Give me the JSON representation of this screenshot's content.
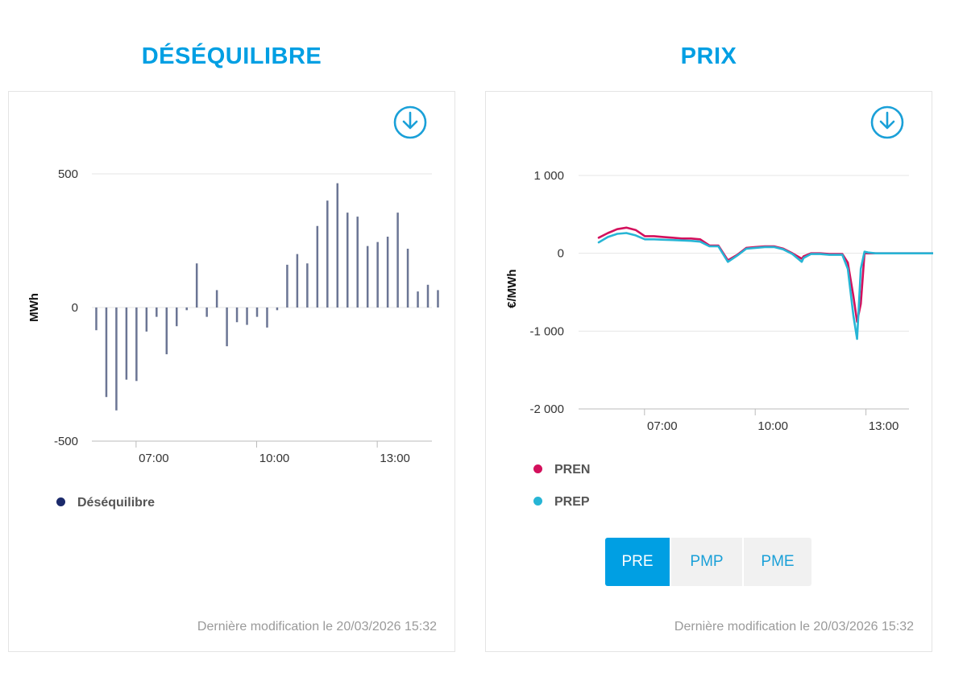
{
  "left_panel": {
    "title": "DÉSÉQUILIBRE",
    "footer": "Dernière modification le 20/03/2026 15:32",
    "download_icon": "download-circle-icon"
  },
  "right_panel": {
    "title": "PRIX",
    "footer": "Dernière modification le 20/03/2026 15:32",
    "download_icon": "download-circle-icon",
    "buttons": [
      "PRE",
      "PMP",
      "PME"
    ],
    "active_button": "PRE"
  },
  "chart_data": [
    {
      "type": "bar",
      "ylabel": "MWh",
      "ylim": [
        -500,
        500
      ],
      "yticks": [
        500,
        0,
        -500
      ],
      "ytick_labels": [
        "500",
        "0",
        "-500"
      ],
      "xticks": [
        "07:00",
        "10:00",
        "13:00"
      ],
      "grid": true,
      "legend_position": "bottom-left",
      "series": [
        {
          "name": "Déséquilibre",
          "color": "#1b2a6b",
          "bar_color": "#6b7594",
          "x": [
            "06:00",
            "06:15",
            "06:30",
            "06:45",
            "07:00",
            "07:15",
            "07:30",
            "07:45",
            "08:00",
            "08:15",
            "08:30",
            "08:45",
            "09:00",
            "09:15",
            "09:30",
            "09:45",
            "10:00",
            "10:15",
            "10:30",
            "10:45",
            "11:00",
            "11:15",
            "11:30",
            "11:45",
            "12:00",
            "12:15",
            "12:30",
            "12:45",
            "13:00",
            "13:15",
            "13:30",
            "13:45",
            "14:00",
            "14:15",
            "14:30",
            "14:45"
          ],
          "values": [
            -85,
            -335,
            -385,
            -270,
            -275,
            -90,
            -35,
            -175,
            -70,
            -10,
            165,
            -35,
            65,
            -145,
            -55,
            -65,
            -35,
            -75,
            -10,
            160,
            200,
            165,
            305,
            400,
            465,
            355,
            340,
            230,
            245,
            265,
            355,
            220,
            60,
            85,
            65,
            0
          ]
        }
      ]
    },
    {
      "type": "line",
      "ylabel": "€/MWh",
      "ylim": [
        -2000,
        1000
      ],
      "yticks": [
        1000,
        0,
        -1000,
        -2000
      ],
      "ytick_labels": [
        "1 000",
        "0",
        "-1 000",
        "-2 000"
      ],
      "xticks": [
        "07:00",
        "10:00",
        "13:00"
      ],
      "grid": true,
      "legend_position": "bottom-left",
      "series": [
        {
          "name": "PREN",
          "color": "#d3105c",
          "x": [
            6.0,
            6.25,
            6.5,
            6.75,
            7.0,
            7.25,
            7.5,
            7.75,
            8.0,
            8.25,
            8.5,
            8.75,
            9.0,
            9.24,
            9.5,
            9.75,
            10.0,
            10.25,
            10.5,
            10.75,
            11.0,
            11.25,
            11.5,
            11.55,
            11.75,
            12.0,
            12.25,
            12.5,
            12.6,
            12.75,
            12.9,
            13.0,
            13.1,
            13.2,
            13.3,
            13.5,
            13.75,
            14.0,
            14.25,
            14.5,
            14.75,
            15.0,
            15.25,
            15.4
          ],
          "values": [
            200,
            260,
            310,
            330,
            300,
            220,
            220,
            210,
            200,
            190,
            190,
            180,
            100,
            100,
            -90,
            -20,
            70,
            80,
            90,
            90,
            60,
            0,
            -70,
            -40,
            0,
            0,
            -10,
            -10,
            -10,
            -120,
            -550,
            -880,
            -650,
            0,
            0,
            0,
            0,
            0,
            0,
            0,
            0,
            0,
            0,
            0
          ]
        },
        {
          "name": "PREP",
          "color": "#27b5d5",
          "x": [
            6.0,
            6.25,
            6.5,
            6.75,
            7.0,
            7.25,
            7.5,
            7.75,
            8.0,
            8.25,
            8.5,
            8.75,
            9.0,
            9.24,
            9.5,
            9.75,
            10.0,
            10.25,
            10.5,
            10.75,
            11.0,
            11.25,
            11.5,
            11.55,
            11.75,
            12.0,
            12.25,
            12.5,
            12.6,
            12.75,
            12.9,
            13.0,
            13.1,
            13.2,
            13.3,
            13.5,
            13.75,
            14.0,
            14.25,
            14.5,
            14.75,
            15.0,
            15.25,
            15.4
          ],
          "values": [
            140,
            210,
            250,
            260,
            230,
            180,
            180,
            175,
            170,
            165,
            160,
            150,
            90,
            90,
            -110,
            -30,
            60,
            70,
            80,
            80,
            50,
            -10,
            -110,
            -60,
            -10,
            -10,
            -20,
            -20,
            -20,
            -200,
            -800,
            -1100,
            -200,
            20,
            10,
            0,
            0,
            0,
            0,
            0,
            0,
            0,
            0,
            0
          ]
        }
      ]
    }
  ]
}
